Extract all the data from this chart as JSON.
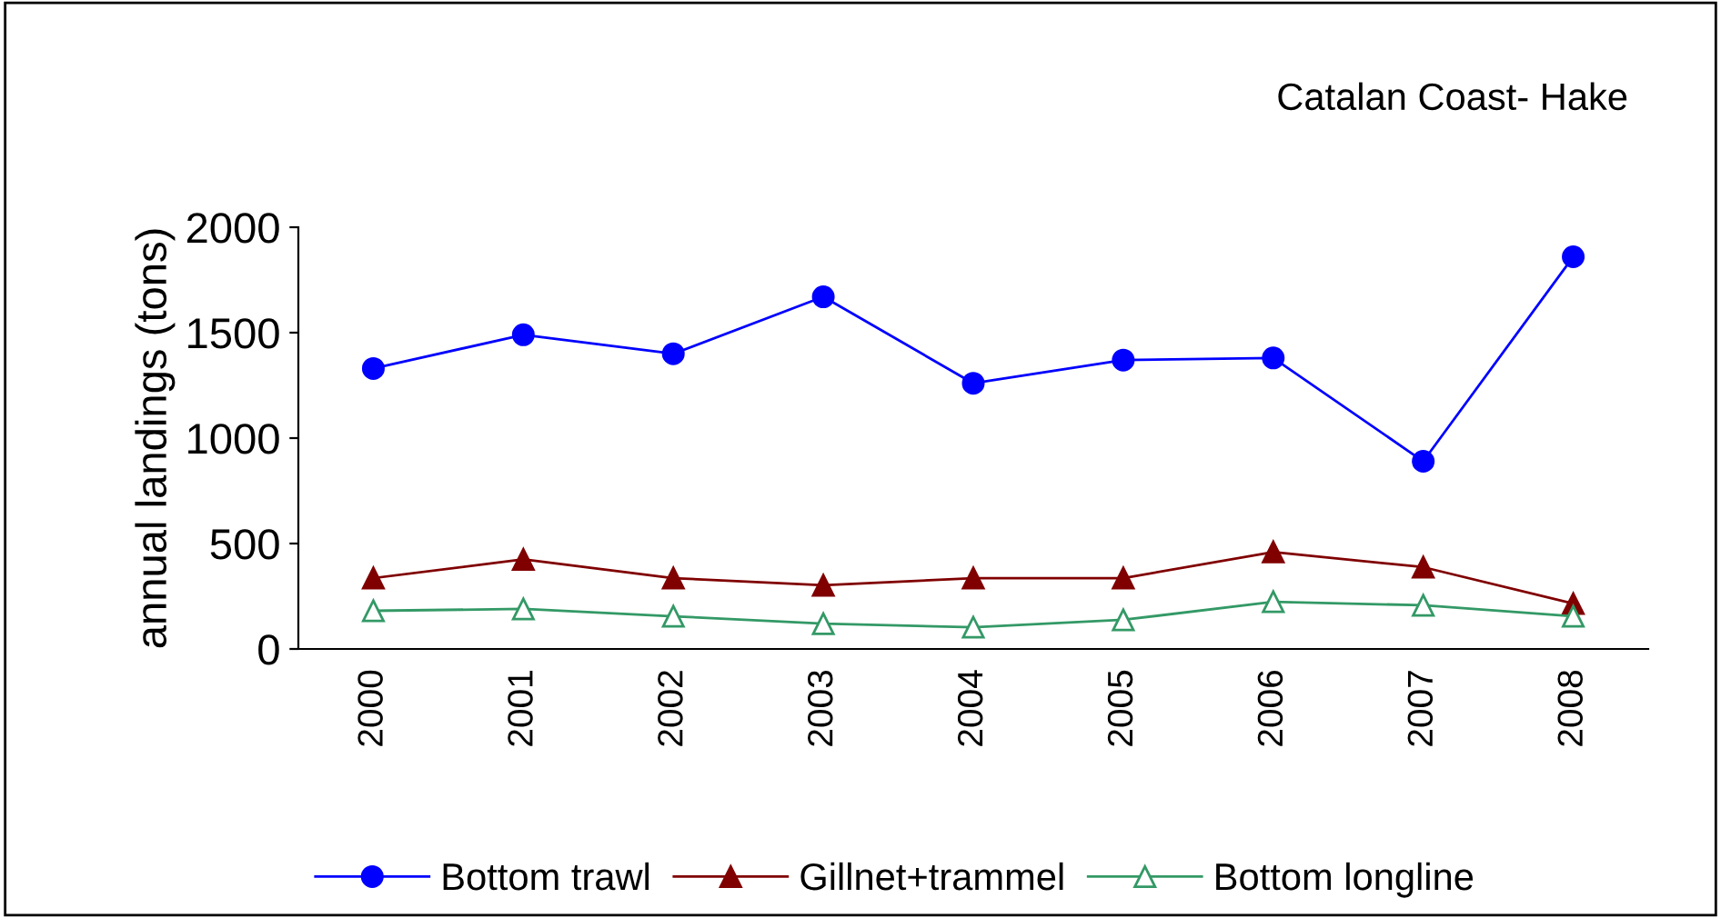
{
  "chart_data": {
    "type": "line",
    "title": "Catalan Coast- Hake",
    "ylabel": "annual landings (tons)",
    "categories": [
      "2000",
      "2001",
      "2002",
      "2003",
      "2004",
      "2005",
      "2006",
      "2007",
      "2008"
    ],
    "series": [
      {
        "name": "Bottom trawl",
        "color": "#0000ff",
        "marker": "circle",
        "values": [
          1330,
          1490,
          1400,
          1670,
          1260,
          1370,
          1380,
          890,
          1860
        ]
      },
      {
        "name": "Gillnet+trammel",
        "color": "#800000",
        "marker": "triangle",
        "values": [
          336,
          425,
          336,
          302,
          336,
          336,
          460,
          388,
          215
        ]
      },
      {
        "name": "Bottom longline",
        "color": "#339966",
        "marker": "triangle_open",
        "values": [
          181,
          190,
          155,
          120,
          103,
          138,
          224,
          207,
          155
        ]
      }
    ],
    "ylim": [
      0,
      2000
    ],
    "yticks": [
      0,
      500,
      1000,
      1500,
      2000
    ],
    "grid": false,
    "legend": "bottom",
    "line_style": "solid"
  }
}
